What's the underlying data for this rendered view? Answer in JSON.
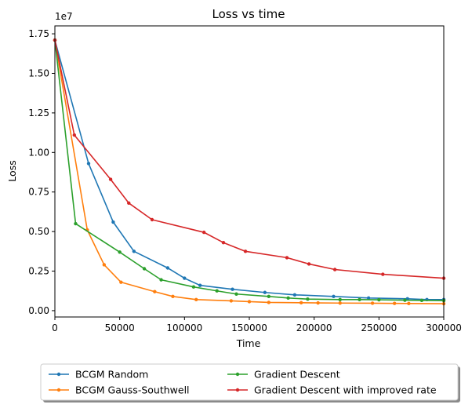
{
  "chart_data": {
    "type": "line",
    "title": "Loss vs time",
    "xlabel": "Time",
    "ylabel": "Loss",
    "xlim": [
      0,
      300000
    ],
    "ylim": [
      -400000,
      18000000
    ],
    "x_ticks": [
      0,
      50000,
      100000,
      150000,
      200000,
      250000,
      300000
    ],
    "x_tick_labels": [
      "0",
      "50000",
      "100000",
      "150000",
      "200000",
      "250000",
      "300000"
    ],
    "y_ticks": [
      0,
      2500000,
      5000000,
      7500000,
      10000000,
      12500000,
      15000000,
      17500000
    ],
    "y_tick_labels": [
      "0.00",
      "0.25",
      "0.50",
      "0.75",
      "1.00",
      "1.25",
      "1.50",
      "1.75"
    ],
    "y_offset_label": "1e7",
    "grid": false,
    "legend_placement": "below",
    "series": [
      {
        "name": "BCGM Random",
        "color": "#1f77b4",
        "x": [
          0,
          26000,
          45000,
          61000,
          87000,
          100000,
          112000,
          137000,
          162000,
          185000,
          215000,
          242000,
          272000,
          287000,
          300000
        ],
        "y": [
          17100000,
          9300000,
          5600000,
          3750000,
          2700000,
          2050000,
          1600000,
          1350000,
          1150000,
          1000000,
          900000,
          800000,
          750000,
          700000,
          700000
        ]
      },
      {
        "name": "BCGM Gauss-Southwell",
        "color": "#ff7f0e",
        "x": [
          0,
          25000,
          38000,
          51000,
          77000,
          91000,
          109000,
          136000,
          150000,
          165000,
          190000,
          203000,
          220000,
          245000,
          262000,
          273000,
          300000
        ],
        "y": [
          17100000,
          5100000,
          2900000,
          1800000,
          1200000,
          900000,
          700000,
          620000,
          570000,
          520000,
          500000,
          490000,
          480000,
          470000,
          460000,
          450000,
          440000
        ]
      },
      {
        "name": "Gradient Descent",
        "color": "#2ca02c",
        "x": [
          0,
          16000,
          50000,
          69000,
          82000,
          107000,
          125000,
          140000,
          165000,
          180000,
          195000,
          220000,
          235000,
          250000,
          270000,
          283000,
          300000
        ],
        "y": [
          17100000,
          5500000,
          3700000,
          2650000,
          1950000,
          1500000,
          1250000,
          1050000,
          900000,
          800000,
          730000,
          700000,
          700000,
          690000,
          660000,
          650000,
          640000
        ]
      },
      {
        "name": "Gradient Descent with improved rate",
        "color": "#d62728",
        "x": [
          0,
          15000,
          43000,
          57000,
          75000,
          115000,
          130000,
          147000,
          179000,
          196000,
          216000,
          253000,
          300000
        ],
        "y": [
          17100000,
          11100000,
          8300000,
          6800000,
          5750000,
          4950000,
          4300000,
          3750000,
          3350000,
          2950000,
          2600000,
          2300000,
          2050000
        ]
      }
    ]
  }
}
